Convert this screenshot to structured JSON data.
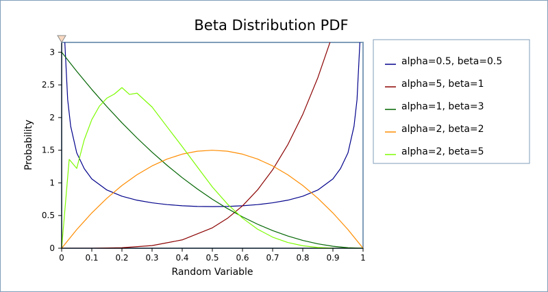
{
  "chart_data": {
    "type": "line",
    "title": "Beta Distribution PDF",
    "xlabel": "Random Variable",
    "ylabel": "Probability",
    "xlim": [
      0,
      1
    ],
    "ylim": [
      0,
      3.15
    ],
    "x_ticks": [
      "0",
      "0.1",
      "0.2",
      "0.3",
      "0.4",
      "0.5",
      "0.6",
      "0.7",
      "0.8",
      "0.9",
      "1"
    ],
    "y_ticks": [
      "0",
      "0.5",
      "1",
      "1.5",
      "2",
      "2.5",
      "3"
    ],
    "grid": false,
    "legend_position": "right",
    "series": [
      {
        "name": "alpha=0.5, beta=0.5",
        "color": "#00008b",
        "x": [
          0.005,
          0.01,
          0.02,
          0.03,
          0.05,
          0.075,
          0.1,
          0.15,
          0.2,
          0.25,
          0.3,
          0.35,
          0.4,
          0.45,
          0.5,
          0.55,
          0.6,
          0.65,
          0.7,
          0.75,
          0.8,
          0.85,
          0.9,
          0.925,
          0.95,
          0.97,
          0.98,
          0.99,
          0.995
        ],
        "values": [
          4.5,
          3.2,
          2.274,
          1.866,
          1.46,
          1.218,
          1.061,
          0.891,
          0.796,
          0.735,
          0.695,
          0.668,
          0.65,
          0.64,
          0.637,
          0.64,
          0.65,
          0.668,
          0.695,
          0.735,
          0.796,
          0.891,
          1.061,
          1.218,
          1.46,
          1.866,
          2.274,
          3.2,
          4.5
        ]
      },
      {
        "name": "alpha=5, beta=1",
        "color": "#8b0000",
        "x": [
          0,
          0.1,
          0.2,
          0.3,
          0.4,
          0.5,
          0.55,
          0.6,
          0.65,
          0.7,
          0.75,
          0.8,
          0.85,
          0.9,
          0.94
        ],
        "values": [
          0,
          0.0005,
          0.008,
          0.0405,
          0.128,
          0.3125,
          0.4575,
          0.648,
          0.8925,
          1.2005,
          1.582,
          2.048,
          2.61,
          3.2805,
          3.9
        ]
      },
      {
        "name": "alpha=1, beta=3",
        "color": "#006400",
        "x": [
          0,
          0.05,
          0.1,
          0.15,
          0.2,
          0.25,
          0.3,
          0.35,
          0.4,
          0.45,
          0.5,
          0.55,
          0.6,
          0.65,
          0.7,
          0.75,
          0.8,
          0.85,
          0.9,
          0.95,
          1
        ],
        "values": [
          3,
          2.7075,
          2.43,
          2.1675,
          1.92,
          1.6875,
          1.47,
          1.2675,
          1.08,
          0.9075,
          0.75,
          0.6075,
          0.48,
          0.3675,
          0.27,
          0.1875,
          0.12,
          0.0675,
          0.03,
          0.0075,
          0
        ]
      },
      {
        "name": "alpha=2, beta=2",
        "color": "#ff8c00",
        "x": [
          0,
          0.05,
          0.1,
          0.15,
          0.2,
          0.25,
          0.3,
          0.35,
          0.4,
          0.45,
          0.5,
          0.55,
          0.6,
          0.65,
          0.7,
          0.75,
          0.8,
          0.85,
          0.9,
          0.95,
          1
        ],
        "values": [
          0,
          0.285,
          0.54,
          0.765,
          0.96,
          1.125,
          1.26,
          1.365,
          1.44,
          1.485,
          1.5,
          1.485,
          1.44,
          1.365,
          1.26,
          1.125,
          0.96,
          0.765,
          0.54,
          0.285,
          0
        ]
      },
      {
        "name": "alpha=2, beta=5",
        "color": "#7cfc00",
        "x": [
          0,
          0.025,
          0.05,
          0.075,
          0.1,
          0.125,
          0.15,
          0.175,
          0.2,
          0.225,
          0.25,
          0.3,
          0.35,
          0.4,
          0.45,
          0.5,
          0.55,
          0.6,
          0.65,
          0.7,
          0.75,
          0.8,
          0.85,
          0.9,
          0.95,
          1
        ],
        "values": [
          0,
          1.36,
          1.222,
          1.66,
          1.968,
          2.173,
          2.297,
          2.36,
          2.458,
          2.354,
          2.373,
          2.161,
          1.857,
          1.555,
          1.245,
          0.938,
          0.677,
          0.461,
          0.292,
          0.17,
          0.088,
          0.038,
          0.012,
          0.002,
          5e-05,
          0
        ]
      }
    ]
  }
}
